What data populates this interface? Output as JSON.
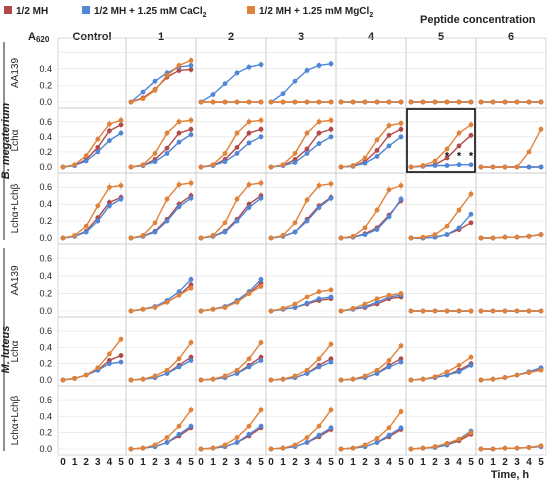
{
  "legend": [
    {
      "label": "1/2 MH",
      "color": "#b24a4a"
    },
    {
      "label": "1/2 MH + 1.25 mM CaCl",
      "sub": "2",
      "color": "#4f86d6"
    },
    {
      "label": "1/2 MH + 1.25 mM MgCl",
      "sub": "2",
      "color": "#e0823a"
    }
  ],
  "header": {
    "peptide_concentration": "Peptide concentration",
    "a620_main": "A",
    "a620_sub": "620",
    "columns": [
      "Control",
      "1",
      "2",
      "3",
      "4",
      "5",
      "6"
    ]
  },
  "organisms": [
    {
      "label": "B. megaterium",
      "rows": [
        0,
        1,
        2
      ]
    },
    {
      "label": "M. luteus",
      "rows": [
        3,
        4,
        5
      ]
    }
  ],
  "row_labels": [
    "AA139",
    "Lchα",
    "Lchα+Lchβ",
    "AA139",
    "Lchα",
    "Lchα+Lchβ"
  ],
  "y_ticks": [
    "0.0",
    "0.2",
    "0.4",
    "0.6"
  ],
  "x_ticks": [
    "0",
    "1",
    "2",
    "3",
    "4",
    "5"
  ],
  "x_axis_label": "Time, h",
  "significance_marker": "*",
  "chart_data": {
    "type": "line",
    "x": [
      0,
      1,
      2,
      3,
      4,
      5
    ],
    "x_unit": "h",
    "ylim": [
      0,
      0.65
    ],
    "series_names": [
      "1/2 MH",
      "1/2 MH + 1.25 mM CaCl2",
      "1/2 MH + 1.25 mM MgCl2"
    ],
    "series_colors": [
      "#b24a4a",
      "#4f86d6",
      "#e0823a"
    ],
    "highlight": {
      "row": 1,
      "col": 5,
      "asterisks_at_x": [
        3,
        4,
        5
      ]
    },
    "panels": [
      [
        null,
        [
          [
            0,
            0.05,
            0.15,
            0.3,
            0.38,
            0.39
          ],
          [
            0,
            0.12,
            0.25,
            0.35,
            0.42,
            0.44
          ],
          [
            0,
            0.04,
            0.14,
            0.32,
            0.44,
            0.5
          ]
        ],
        [
          [
            0,
            0,
            0,
            0,
            0,
            0
          ],
          [
            0,
            0.09,
            0.22,
            0.35,
            0.42,
            0.45
          ],
          [
            0,
            0,
            0,
            0,
            0,
            0
          ]
        ],
        [
          [
            0,
            0,
            0,
            0,
            0,
            0
          ],
          [
            0,
            0.1,
            0.25,
            0.38,
            0.44,
            0.46
          ],
          [
            0,
            0,
            0,
            0,
            0,
            0
          ]
        ],
        [
          [
            0,
            0,
            0,
            0,
            0,
            0
          ],
          [
            0,
            0,
            0,
            0,
            0,
            0
          ],
          [
            0,
            0,
            0,
            0,
            0,
            0
          ]
        ],
        [
          [
            0,
            0,
            0,
            0,
            0,
            0
          ],
          [
            0,
            0,
            0,
            0,
            0,
            0
          ],
          [
            0,
            0,
            0,
            0,
            0,
            0
          ]
        ],
        [
          [
            0,
            0,
            0,
            0,
            0,
            0
          ],
          [
            0,
            0,
            0,
            0,
            0,
            0
          ],
          [
            0,
            0,
            0,
            0,
            0,
            0
          ]
        ]
      ],
      [
        [
          [
            0,
            0.02,
            0.1,
            0.26,
            0.48,
            0.56
          ],
          [
            0,
            0.02,
            0.08,
            0.2,
            0.35,
            0.45
          ],
          [
            0,
            0.03,
            0.15,
            0.37,
            0.57,
            0.62
          ]
        ],
        [
          [
            0,
            0.02,
            0.1,
            0.25,
            0.45,
            0.5
          ],
          [
            0,
            0.02,
            0.07,
            0.18,
            0.33,
            0.43
          ],
          [
            0,
            0.03,
            0.18,
            0.45,
            0.6,
            0.62
          ]
        ],
        [
          [
            0,
            0.02,
            0.1,
            0.26,
            0.45,
            0.5
          ],
          [
            0,
            0.02,
            0.07,
            0.18,
            0.32,
            0.4
          ],
          [
            0,
            0.03,
            0.18,
            0.45,
            0.6,
            0.62
          ]
        ],
        [
          [
            0,
            0.02,
            0.1,
            0.24,
            0.45,
            0.5
          ],
          [
            0,
            0.02,
            0.06,
            0.18,
            0.31,
            0.4
          ],
          [
            0,
            0.03,
            0.18,
            0.45,
            0.6,
            0.62
          ]
        ],
        [
          [
            0,
            0.01,
            0.07,
            0.22,
            0.42,
            0.5
          ],
          [
            0,
            0.01,
            0.05,
            0.14,
            0.28,
            0.4
          ],
          [
            0,
            0.02,
            0.12,
            0.36,
            0.55,
            0.58
          ]
        ],
        [
          [
            0,
            0.01,
            0.03,
            0.12,
            0.28,
            0.42
          ],
          [
            0,
            0.01,
            0.02,
            0.02,
            0.03,
            0.03
          ],
          [
            0,
            0.02,
            0.08,
            0.24,
            0.45,
            0.56
          ]
        ],
        [
          [
            0,
            0,
            0,
            0,
            0,
            0
          ],
          [
            0,
            0,
            0,
            0,
            0,
            0
          ],
          [
            0,
            0,
            0,
            0,
            0.2,
            0.5
          ]
        ]
      ],
      [
        [
          [
            0,
            0.02,
            0.08,
            0.24,
            0.42,
            0.48
          ],
          [
            0,
            0.02,
            0.07,
            0.2,
            0.38,
            0.46
          ],
          [
            0,
            0.03,
            0.14,
            0.38,
            0.6,
            0.62
          ]
        ],
        [
          [
            0,
            0.02,
            0.08,
            0.22,
            0.4,
            0.5
          ],
          [
            0,
            0.02,
            0.07,
            0.2,
            0.37,
            0.47
          ],
          [
            0,
            0.03,
            0.18,
            0.46,
            0.63,
            0.65
          ]
        ],
        [
          [
            0,
            0.02,
            0.08,
            0.22,
            0.4,
            0.5
          ],
          [
            0,
            0.02,
            0.07,
            0.2,
            0.36,
            0.47
          ],
          [
            0,
            0.03,
            0.18,
            0.46,
            0.63,
            0.65
          ]
        ],
        [
          [
            0,
            0.02,
            0.07,
            0.22,
            0.38,
            0.48
          ],
          [
            0,
            0.02,
            0.07,
            0.2,
            0.36,
            0.47
          ],
          [
            0,
            0.03,
            0.18,
            0.45,
            0.62,
            0.64
          ]
        ],
        [
          [
            0,
            0.01,
            0.05,
            0.12,
            0.27,
            0.44
          ],
          [
            0,
            0.01,
            0.04,
            0.1,
            0.25,
            0.46
          ],
          [
            0,
            0.02,
            0.12,
            0.33,
            0.57,
            0.62
          ]
        ],
        [
          [
            0,
            0,
            0.01,
            0.04,
            0.1,
            0.18
          ],
          [
            0,
            0,
            0.01,
            0.04,
            0.12,
            0.28
          ],
          [
            0,
            0.01,
            0.04,
            0.14,
            0.33,
            0.52
          ]
        ],
        [
          [
            0,
            0,
            0.01,
            0.01,
            0.02,
            0.04
          ],
          [
            0,
            0,
            0.01,
            0.01,
            0.02,
            0.04
          ],
          [
            0,
            0,
            0.01,
            0.01,
            0.02,
            0.04
          ]
        ]
      ],
      [
        null,
        [
          [
            0,
            0.02,
            0.05,
            0.1,
            0.18,
            0.3
          ],
          [
            0,
            0.02,
            0.05,
            0.12,
            0.22,
            0.36
          ],
          [
            0,
            0.02,
            0.04,
            0.1,
            0.18,
            0.26
          ]
        ],
        [
          [
            0,
            0.02,
            0.05,
            0.1,
            0.2,
            0.32
          ],
          [
            0,
            0.02,
            0.05,
            0.12,
            0.22,
            0.36
          ],
          [
            0,
            0.02,
            0.04,
            0.1,
            0.2,
            0.28
          ]
        ],
        [
          [
            0,
            0.02,
            0.04,
            0.08,
            0.12,
            0.14
          ],
          [
            0,
            0.02,
            0.04,
            0.09,
            0.14,
            0.16
          ],
          [
            0,
            0.03,
            0.08,
            0.16,
            0.22,
            0.24
          ]
        ],
        [
          [
            0,
            0.02,
            0.04,
            0.08,
            0.14,
            0.16
          ],
          [
            0,
            0.02,
            0.05,
            0.1,
            0.16,
            0.18
          ],
          [
            0,
            0.03,
            0.08,
            0.14,
            0.18,
            0.2
          ]
        ],
        [
          [
            0,
            0,
            0,
            0,
            0,
            0
          ],
          [
            0,
            0,
            0,
            0,
            0,
            0
          ],
          [
            0,
            0,
            0,
            0,
            0,
            0
          ]
        ],
        [
          [
            0,
            0,
            0,
            0,
            0,
            0
          ],
          [
            0,
            0,
            0,
            0,
            0,
            0
          ],
          [
            0,
            0,
            0,
            0,
            0,
            0
          ]
        ]
      ],
      [
        [
          [
            0,
            0.02,
            0.06,
            0.12,
            0.24,
            0.3
          ],
          [
            0,
            0.02,
            0.06,
            0.12,
            0.2,
            0.22
          ],
          [
            0,
            0.02,
            0.06,
            0.15,
            0.32,
            0.5
          ]
        ],
        [
          [
            0,
            0.01,
            0.03,
            0.08,
            0.18,
            0.28
          ],
          [
            0,
            0.01,
            0.03,
            0.08,
            0.16,
            0.24
          ],
          [
            0,
            0.01,
            0.05,
            0.12,
            0.26,
            0.46
          ]
        ],
        [
          [
            0,
            0.01,
            0.03,
            0.08,
            0.18,
            0.28
          ],
          [
            0,
            0.01,
            0.03,
            0.08,
            0.16,
            0.24
          ],
          [
            0,
            0.01,
            0.05,
            0.12,
            0.26,
            0.46
          ]
        ],
        [
          [
            0,
            0.01,
            0.03,
            0.08,
            0.18,
            0.26
          ],
          [
            0,
            0.01,
            0.03,
            0.08,
            0.16,
            0.22
          ],
          [
            0,
            0.01,
            0.05,
            0.12,
            0.26,
            0.44
          ]
        ],
        [
          [
            0,
            0.01,
            0.03,
            0.08,
            0.18,
            0.26
          ],
          [
            0,
            0.01,
            0.03,
            0.08,
            0.16,
            0.22
          ],
          [
            0,
            0.01,
            0.05,
            0.12,
            0.24,
            0.42
          ]
        ],
        [
          [
            0,
            0.01,
            0.03,
            0.06,
            0.12,
            0.2
          ],
          [
            0,
            0.01,
            0.03,
            0.06,
            0.1,
            0.18
          ],
          [
            0,
            0.01,
            0.04,
            0.1,
            0.18,
            0.28
          ]
        ],
        [
          [
            0,
            0.01,
            0.03,
            0.06,
            0.1,
            0.14
          ],
          [
            0,
            0.01,
            0.03,
            0.06,
            0.1,
            0.15
          ],
          [
            0,
            0.01,
            0.03,
            0.06,
            0.09,
            0.12
          ]
        ]
      ],
      [
        null,
        [
          [
            0,
            0.01,
            0.03,
            0.08,
            0.16,
            0.26
          ],
          [
            0,
            0.01,
            0.03,
            0.08,
            0.18,
            0.28
          ],
          [
            0,
            0.01,
            0.05,
            0.14,
            0.28,
            0.48
          ]
        ],
        [
          [
            0,
            0.01,
            0.03,
            0.08,
            0.16,
            0.26
          ],
          [
            0,
            0.01,
            0.03,
            0.08,
            0.18,
            0.28
          ],
          [
            0,
            0.01,
            0.05,
            0.14,
            0.28,
            0.48
          ]
        ],
        [
          [
            0,
            0.01,
            0.03,
            0.08,
            0.15,
            0.24
          ],
          [
            0,
            0.01,
            0.03,
            0.08,
            0.17,
            0.26
          ],
          [
            0,
            0.01,
            0.05,
            0.14,
            0.28,
            0.48
          ]
        ],
        [
          [
            0,
            0.01,
            0.03,
            0.08,
            0.15,
            0.24
          ],
          [
            0,
            0.01,
            0.03,
            0.08,
            0.17,
            0.26
          ],
          [
            0,
            0.01,
            0.05,
            0.13,
            0.26,
            0.46
          ]
        ],
        [
          [
            0,
            0.01,
            0.02,
            0.05,
            0.1,
            0.18
          ],
          [
            0,
            0.01,
            0.02,
            0.05,
            0.12,
            0.22
          ],
          [
            0,
            0.01,
            0.03,
            0.07,
            0.12,
            0.2
          ]
        ],
        [
          [
            0,
            0,
            0.01,
            0.01,
            0.02,
            0.03
          ],
          [
            0,
            0,
            0.01,
            0.01,
            0.02,
            0.03
          ],
          [
            0,
            0,
            0.01,
            0.01,
            0.02,
            0.04
          ]
        ]
      ]
    ]
  }
}
